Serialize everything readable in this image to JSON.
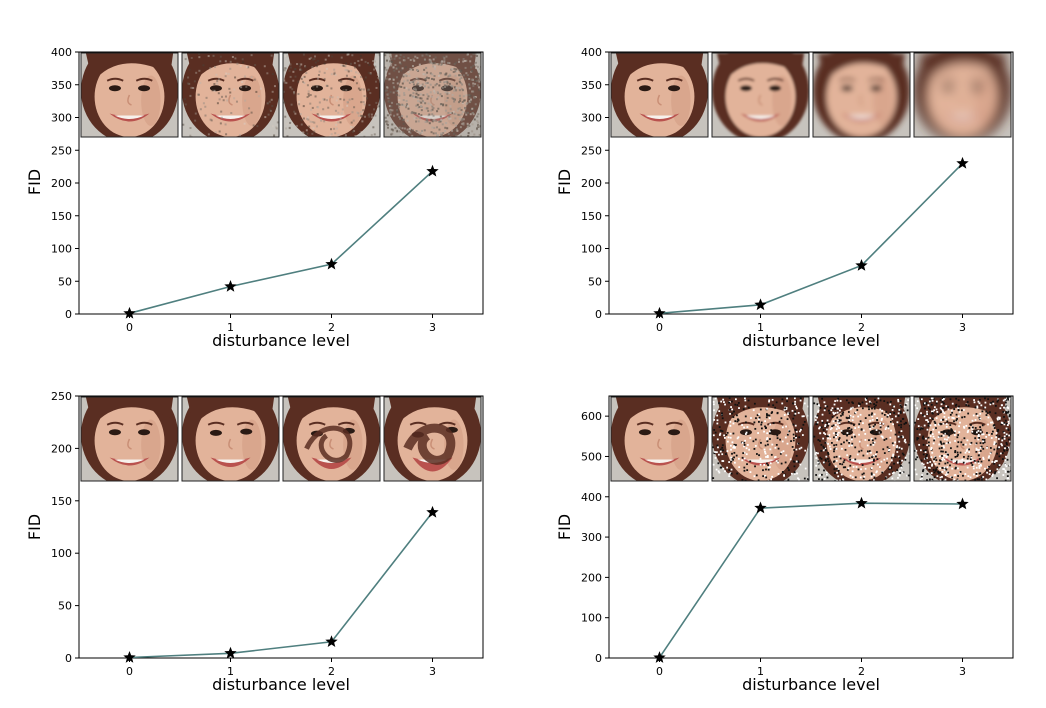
{
  "figure": {
    "face_palette": {
      "skin": "#e2b39a",
      "skin_shadow": "#c98f76",
      "hair": "#5a2e22",
      "lip": "#b9524e",
      "teeth": "#f7f1ec",
      "eye": "#2a1a14",
      "backdrop": "#c7c3bd",
      "line_color": "#4f7f7f",
      "marker_color": "#000000"
    }
  },
  "chart_data": [
    {
      "type": "line",
      "disturbance": "noise",
      "xlabel": "disturbance level",
      "ylabel": "FID",
      "x": [
        0,
        1,
        2,
        3
      ],
      "y": [
        1,
        42,
        76,
        218
      ],
      "xlim": [
        -0.5,
        3.5
      ],
      "ylim": [
        0,
        400
      ],
      "xticks": [
        "0",
        "1",
        "2",
        "3"
      ],
      "yticks": [
        0,
        50,
        100,
        150,
        200,
        250,
        300,
        350,
        400
      ],
      "marker": "star",
      "thumbnails": [
        "level 0 original face",
        "level 1 slight noise",
        "level 2 moderate noise",
        "level 3 heavy noise"
      ]
    },
    {
      "type": "line",
      "disturbance": "blur",
      "xlabel": "disturbance level",
      "ylabel": "FID",
      "x": [
        0,
        1,
        2,
        3
      ],
      "y": [
        1,
        14,
        74,
        230
      ],
      "xlim": [
        -0.5,
        3.5
      ],
      "ylim": [
        0,
        400
      ],
      "xticks": [
        "0",
        "1",
        "2",
        "3"
      ],
      "yticks": [
        0,
        50,
        100,
        150,
        200,
        250,
        300,
        350,
        400
      ],
      "marker": "star",
      "thumbnails": [
        "level 0 original face",
        "level 1 slight blur",
        "level 2 moderate blur",
        "level 3 heavy blur"
      ]
    },
    {
      "type": "line",
      "disturbance": "swirl",
      "xlabel": "disturbance level",
      "ylabel": "FID",
      "x": [
        0,
        1,
        2,
        3
      ],
      "y": [
        0.5,
        4.5,
        15.5,
        139
      ],
      "xlim": [
        -0.5,
        3.5
      ],
      "ylim": [
        0,
        250
      ],
      "xticks": [
        "0",
        "1",
        "2",
        "3"
      ],
      "yticks": [
        0,
        50,
        100,
        150,
        200,
        250
      ],
      "marker": "star",
      "thumbnails": [
        "level 0 original face",
        "level 1 slight swirl",
        "level 2 moderate swirl",
        "level 3 strong swirl"
      ]
    },
    {
      "type": "line",
      "disturbance": "salt-and-pepper",
      "xlabel": "disturbance level",
      "ylabel": "FID",
      "x": [
        0,
        1,
        2,
        3
      ],
      "y": [
        1,
        372,
        384,
        382
      ],
      "xlim": [
        -0.5,
        3.5
      ],
      "ylim": [
        0,
        650
      ],
      "xticks": [
        "0",
        "1",
        "2",
        "3"
      ],
      "yticks": [
        0,
        100,
        200,
        300,
        400,
        500,
        600
      ],
      "marker": "star",
      "thumbnails": [
        "level 0 original face",
        "level 1 salt-and-pepper",
        "level 2 salt-and-pepper",
        "level 3 salt-and-pepper"
      ]
    }
  ]
}
